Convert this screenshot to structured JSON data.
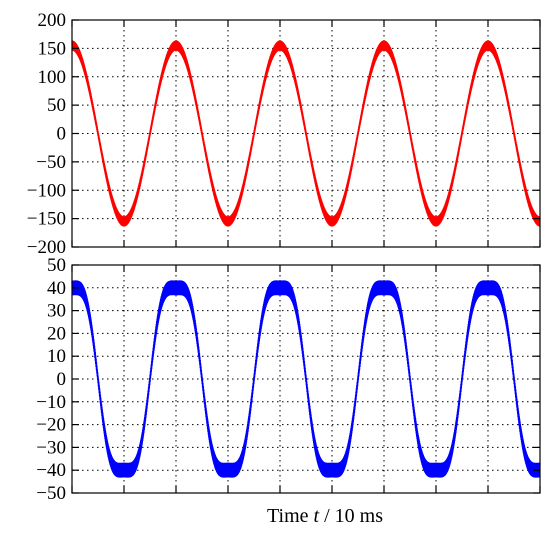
{
  "chart_data": [
    {
      "type": "line",
      "title": "",
      "xlabel": "",
      "ylabel": "",
      "ylim": [
        -200,
        200
      ],
      "xlim": [
        0,
        9
      ],
      "yticks": [
        -200,
        -150,
        -100,
        -50,
        0,
        50,
        100,
        150,
        200
      ],
      "ytick_labels": [
        "−200",
        "−150",
        "−100",
        "−50",
        "0",
        "50",
        "100",
        "150",
        "200"
      ],
      "xticks": [
        0,
        1,
        2,
        3,
        4,
        5,
        6,
        7,
        8,
        9
      ],
      "grid": true,
      "series": [
        {
          "color": "#ff0000",
          "waveform": "sine",
          "amplitude": 155,
          "ripple": 8,
          "period": 2,
          "phase_deg": 90,
          "x_range": [
            0,
            9
          ]
        }
      ]
    },
    {
      "type": "line",
      "title": "",
      "xlabel": "Time t / 10 ms",
      "ylabel": "",
      "ylim": [
        -50,
        50
      ],
      "xlim": [
        0,
        9
      ],
      "yticks": [
        -50,
        -40,
        -30,
        -20,
        -10,
        0,
        10,
        20,
        30,
        40,
        50
      ],
      "ytick_labels": [
        "−50",
        "−40",
        "−30",
        "−20",
        "−10",
        "0",
        "10",
        "20",
        "30",
        "40",
        "50"
      ],
      "xticks": [
        0,
        1,
        2,
        3,
        4,
        5,
        6,
        7,
        8,
        9
      ],
      "grid": true,
      "series": [
        {
          "color": "#0000ff",
          "waveform": "distorted-sine",
          "amplitude": 40,
          "ripple": 3,
          "period": 2,
          "phase_deg": 90,
          "x_range": [
            0,
            9
          ]
        }
      ]
    }
  ],
  "xlabel_parts": {
    "prefix": "Time ",
    "var": "t",
    "suffix": " / 10 ms"
  }
}
